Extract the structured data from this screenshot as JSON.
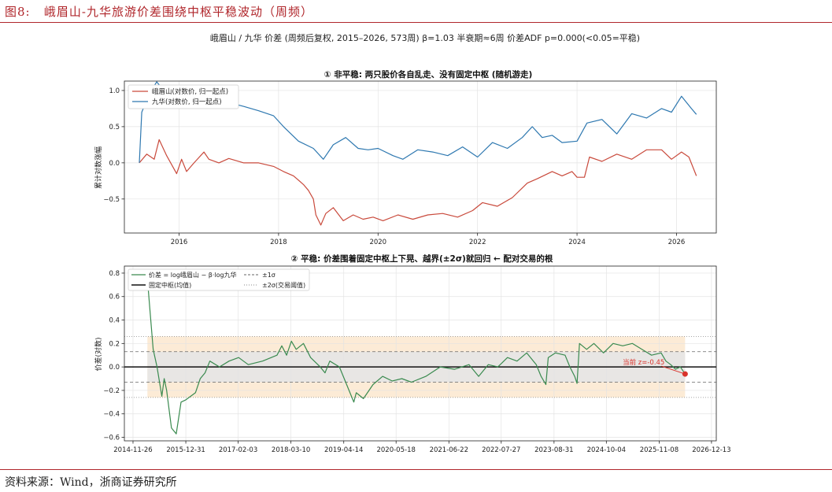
{
  "figure": {
    "label": "图8:",
    "title": "峨眉山-九华旅游价差围绕中枢平稳波动（周频）",
    "source": "资料来源：Wind，浙商证券研究所",
    "suptitle": "峨眉山 / 九华 价差 (周频后复权, 2015–2026, 573周)   β=1.03  半衰期≈6周  价差ADF p=0.000(<0.05=平稳)"
  },
  "colors": {
    "emei": "#c94a3c",
    "jiuhua": "#2e78b0",
    "spread": "#3a8a4f",
    "mean": "#111111",
    "sigma1": "#666666",
    "band1": "#e6e6e6",
    "band2": "#fbe7cf",
    "accent": "#b0262b",
    "current_marker": "#d9332b"
  },
  "chart_data": [
    {
      "type": "line",
      "title": "① 非平稳: 两只股价各自乱走、没有固定中枢 (随机游走)",
      "ylabel": "累计对数涨幅",
      "xlabel": "",
      "xlim": [
        2014.9,
        2026.8
      ],
      "ylim": [
        -0.97,
        1.13
      ],
      "xticks": [
        2016,
        2018,
        2020,
        2022,
        2024,
        2026
      ],
      "yticks": [
        -0.5,
        0.0,
        0.5,
        1.0
      ],
      "ytick_labels": [
        "−0.5",
        "0.0",
        "0.5",
        "1.0"
      ],
      "grid": true,
      "legend": "top-left",
      "series": [
        {
          "name": "峨眉山(对数价, 归一起点)",
          "color": "#c94a3c",
          "points": [
            [
              2015.2,
              0.0
            ],
            [
              2015.35,
              0.12
            ],
            [
              2015.5,
              0.05
            ],
            [
              2015.6,
              0.32
            ],
            [
              2015.75,
              0.1
            ],
            [
              2015.95,
              -0.15
            ],
            [
              2016.05,
              0.05
            ],
            [
              2016.15,
              -0.12
            ],
            [
              2016.3,
              0.0
            ],
            [
              2016.5,
              0.15
            ],
            [
              2016.6,
              0.05
            ],
            [
              2016.8,
              0.0
            ],
            [
              2017.0,
              0.06
            ],
            [
              2017.3,
              0.0
            ],
            [
              2017.6,
              0.0
            ],
            [
              2017.9,
              -0.05
            ],
            [
              2018.1,
              -0.12
            ],
            [
              2018.3,
              -0.18
            ],
            [
              2018.5,
              -0.3
            ],
            [
              2018.6,
              -0.38
            ],
            [
              2018.7,
              -0.5
            ],
            [
              2018.75,
              -0.72
            ],
            [
              2018.85,
              -0.86
            ],
            [
              2018.95,
              -0.7
            ],
            [
              2019.1,
              -0.62
            ],
            [
              2019.3,
              -0.8
            ],
            [
              2019.5,
              -0.72
            ],
            [
              2019.7,
              -0.78
            ],
            [
              2019.9,
              -0.75
            ],
            [
              2020.1,
              -0.8
            ],
            [
              2020.4,
              -0.72
            ],
            [
              2020.7,
              -0.78
            ],
            [
              2021.0,
              -0.72
            ],
            [
              2021.3,
              -0.7
            ],
            [
              2021.6,
              -0.75
            ],
            [
              2021.9,
              -0.66
            ],
            [
              2022.1,
              -0.55
            ],
            [
              2022.4,
              -0.6
            ],
            [
              2022.7,
              -0.48
            ],
            [
              2023.0,
              -0.28
            ],
            [
              2023.2,
              -0.22
            ],
            [
              2023.5,
              -0.12
            ],
            [
              2023.7,
              -0.18
            ],
            [
              2023.9,
              -0.12
            ],
            [
              2024.0,
              -0.2
            ],
            [
              2024.15,
              -0.2
            ],
            [
              2024.25,
              0.08
            ],
            [
              2024.5,
              0.02
            ],
            [
              2024.8,
              0.12
            ],
            [
              2025.1,
              0.05
            ],
            [
              2025.4,
              0.18
            ],
            [
              2025.7,
              0.18
            ],
            [
              2025.9,
              0.05
            ],
            [
              2026.1,
              0.15
            ],
            [
              2026.25,
              0.08
            ],
            [
              2026.4,
              -0.18
            ]
          ]
        },
        {
          "name": "九华(对数价, 归一起点)",
          "color": "#2e78b0",
          "points": [
            [
              2015.2,
              0.0
            ],
            [
              2015.25,
              0.7
            ],
            [
              2015.4,
              0.95
            ],
            [
              2015.55,
              1.12
            ],
            [
              2015.8,
              0.9
            ],
            [
              2016.0,
              0.95
            ],
            [
              2016.3,
              0.88
            ],
            [
              2016.6,
              0.8
            ],
            [
              2016.9,
              0.85
            ],
            [
              2017.3,
              0.78
            ],
            [
              2017.6,
              0.72
            ],
            [
              2017.9,
              0.65
            ],
            [
              2018.1,
              0.5
            ],
            [
              2018.4,
              0.3
            ],
            [
              2018.7,
              0.2
            ],
            [
              2018.9,
              0.05
            ],
            [
              2019.1,
              0.25
            ],
            [
              2019.35,
              0.35
            ],
            [
              2019.6,
              0.2
            ],
            [
              2019.8,
              0.18
            ],
            [
              2020.0,
              0.2
            ],
            [
              2020.3,
              0.1
            ],
            [
              2020.5,
              0.05
            ],
            [
              2020.8,
              0.18
            ],
            [
              2021.1,
              0.15
            ],
            [
              2021.4,
              0.1
            ],
            [
              2021.7,
              0.22
            ],
            [
              2022.0,
              0.08
            ],
            [
              2022.3,
              0.28
            ],
            [
              2022.6,
              0.2
            ],
            [
              2022.9,
              0.35
            ],
            [
              2023.1,
              0.5
            ],
            [
              2023.3,
              0.35
            ],
            [
              2023.5,
              0.38
            ],
            [
              2023.7,
              0.28
            ],
            [
              2024.0,
              0.3
            ],
            [
              2024.2,
              0.55
            ],
            [
              2024.5,
              0.6
            ],
            [
              2024.8,
              0.4
            ],
            [
              2025.1,
              0.68
            ],
            [
              2025.4,
              0.62
            ],
            [
              2025.7,
              0.75
            ],
            [
              2025.9,
              0.7
            ],
            [
              2026.1,
              0.92
            ],
            [
              2026.3,
              0.75
            ],
            [
              2026.4,
              0.67
            ]
          ]
        }
      ]
    },
    {
      "type": "line",
      "title": "② 平稳: 价差围着固定中枢上下晃、越界(±2σ)就回归 ← 配对交易的根",
      "ylabel": "价差(对数)",
      "xlabel": "",
      "xlim": [
        2014.72,
        2027.05
      ],
      "ylim": [
        -0.63,
        0.86
      ],
      "xticks": [
        2014.9,
        2016.0,
        2017.09,
        2018.19,
        2019.29,
        2020.38,
        2021.48,
        2022.57,
        2023.67,
        2024.76,
        2025.86,
        2026.95
      ],
      "xtick_labels": [
        "2014-11-26",
        "2015-12-31",
        "2017-02-03",
        "2018-03-10",
        "2019-04-14",
        "2020-05-18",
        "2021-06-22",
        "2022-07-27",
        "2023-08-31",
        "2024-10-04",
        "2025-11-08",
        "2026-12-13"
      ],
      "yticks": [
        -0.6,
        -0.4,
        -0.2,
        0.0,
        0.2,
        0.4,
        0.6,
        0.8
      ],
      "ytick_labels": [
        "−0.6",
        "−0.4",
        "−0.2",
        "0.0",
        "0.2",
        "0.4",
        "0.6",
        "0.8"
      ],
      "grid": true,
      "legend": "top-left",
      "mean": 0.0,
      "sigma": 0.13,
      "band_x": [
        2015.2,
        2026.4
      ],
      "legend_entries": {
        "spread": "价差 = log峨眉山 − β·log九华",
        "mean": "固定中枢(均值)",
        "sigma1": "±1σ",
        "sigma2": "±2σ(交易阈值)"
      },
      "annotation": {
        "text": "当前 z=-0.45",
        "x": 2026.4,
        "y": -0.06
      },
      "series": [
        {
          "name": "价差 = log峨眉山 − β·log九华",
          "color": "#3a8a4f",
          "points": [
            [
              2015.2,
              0.75
            ],
            [
              2015.25,
              0.5
            ],
            [
              2015.32,
              0.15
            ],
            [
              2015.4,
              0.0
            ],
            [
              2015.5,
              -0.25
            ],
            [
              2015.55,
              -0.1
            ],
            [
              2015.6,
              -0.2
            ],
            [
              2015.7,
              -0.52
            ],
            [
              2015.8,
              -0.57
            ],
            [
              2015.9,
              -0.3
            ],
            [
              2016.0,
              -0.28
            ],
            [
              2016.1,
              -0.25
            ],
            [
              2016.2,
              -0.22
            ],
            [
              2016.3,
              -0.1
            ],
            [
              2016.4,
              -0.05
            ],
            [
              2016.5,
              0.05
            ],
            [
              2016.7,
              0.0
            ],
            [
              2016.9,
              0.05
            ],
            [
              2017.1,
              0.08
            ],
            [
              2017.3,
              0.02
            ],
            [
              2017.6,
              0.05
            ],
            [
              2017.9,
              0.1
            ],
            [
              2018.0,
              0.18
            ],
            [
              2018.1,
              0.1
            ],
            [
              2018.2,
              0.22
            ],
            [
              2018.3,
              0.15
            ],
            [
              2018.45,
              0.2
            ],
            [
              2018.6,
              0.08
            ],
            [
              2018.8,
              0.0
            ],
            [
              2018.9,
              -0.05
            ],
            [
              2019.0,
              0.05
            ],
            [
              2019.2,
              0.0
            ],
            [
              2019.4,
              -0.2
            ],
            [
              2019.5,
              -0.3
            ],
            [
              2019.55,
              -0.22
            ],
            [
              2019.7,
              -0.27
            ],
            [
              2019.9,
              -0.15
            ],
            [
              2020.1,
              -0.08
            ],
            [
              2020.3,
              -0.12
            ],
            [
              2020.5,
              -0.1
            ],
            [
              2020.7,
              -0.13
            ],
            [
              2021.0,
              -0.08
            ],
            [
              2021.3,
              0.0
            ],
            [
              2021.6,
              -0.02
            ],
            [
              2021.9,
              0.02
            ],
            [
              2022.1,
              -0.08
            ],
            [
              2022.3,
              0.02
            ],
            [
              2022.5,
              0.0
            ],
            [
              2022.7,
              0.08
            ],
            [
              2022.9,
              0.05
            ],
            [
              2023.1,
              0.12
            ],
            [
              2023.3,
              0.02
            ],
            [
              2023.4,
              -0.08
            ],
            [
              2023.5,
              -0.15
            ],
            [
              2023.55,
              0.08
            ],
            [
              2023.7,
              0.12
            ],
            [
              2023.9,
              0.1
            ],
            [
              2024.0,
              0.0
            ],
            [
              2024.1,
              -0.08
            ],
            [
              2024.15,
              -0.14
            ],
            [
              2024.2,
              0.2
            ],
            [
              2024.35,
              0.15
            ],
            [
              2024.5,
              0.2
            ],
            [
              2024.7,
              0.12
            ],
            [
              2024.9,
              0.2
            ],
            [
              2025.1,
              0.18
            ],
            [
              2025.3,
              0.2
            ],
            [
              2025.5,
              0.15
            ],
            [
              2025.7,
              0.1
            ],
            [
              2025.9,
              0.12
            ],
            [
              2026.0,
              0.05
            ],
            [
              2026.1,
              0.02
            ],
            [
              2026.2,
              -0.02
            ],
            [
              2026.3,
              0.0
            ],
            [
              2026.4,
              -0.06
            ]
          ]
        }
      ]
    }
  ]
}
